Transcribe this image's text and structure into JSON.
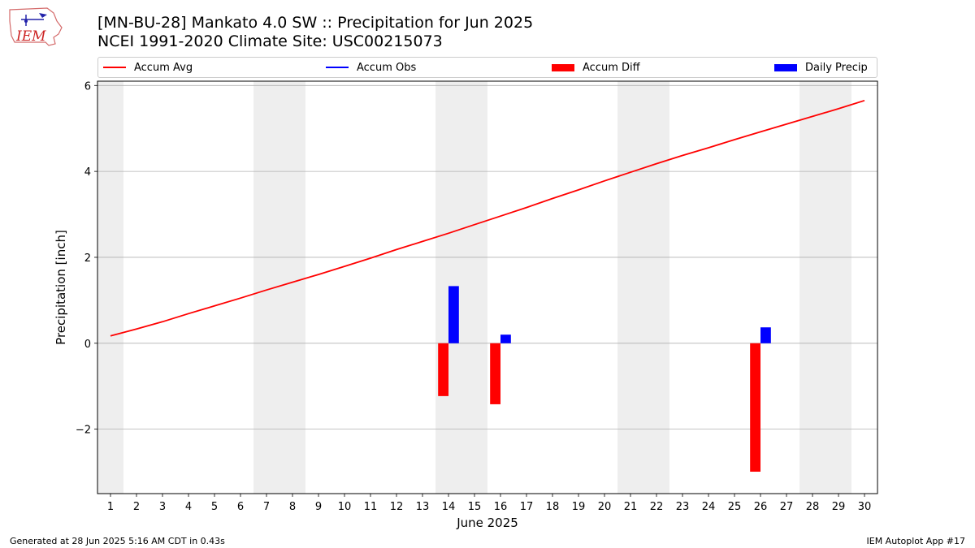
{
  "logo_text": "IEM",
  "title_line1": "[MN-BU-28] Mankato 4.0 SW :: Precipitation for Jun 2025",
  "title_line2": "NCEI 1991-2020 Climate Site: USC00215073",
  "footer_left": "Generated at 28 Jun 2025 5:16 AM CDT in 0.43s",
  "footer_right": "IEM Autoplot App #17",
  "legend": [
    {
      "label": "Accum Avg",
      "type": "line",
      "color": "#ff0000"
    },
    {
      "label": "Accum Obs",
      "type": "line",
      "color": "#0000ff"
    },
    {
      "label": "Accum Diff",
      "type": "bar",
      "color": "#ff0000"
    },
    {
      "label": "Daily Precip",
      "type": "bar",
      "color": "#0000ff"
    }
  ],
  "chart_data": {
    "type": "bar",
    "xlabel": "June 2025",
    "ylabel": "Precipitation [inch]",
    "xlim": [
      0.5,
      30.5
    ],
    "ylim": [
      -3.5,
      6.1
    ],
    "yticks": [
      -2,
      0,
      2,
      4,
      6
    ],
    "ytick_labels": [
      "−2",
      "0",
      "2",
      "4",
      "6"
    ],
    "xticks": [
      1,
      2,
      3,
      4,
      5,
      6,
      7,
      8,
      9,
      10,
      11,
      12,
      13,
      14,
      15,
      16,
      17,
      18,
      19,
      20,
      21,
      22,
      23,
      24,
      25,
      26,
      27,
      28,
      29,
      30
    ],
    "grid": "horizontal",
    "weekend_shading": [
      [
        0.5,
        1.5
      ],
      [
        6.5,
        8.5
      ],
      [
        13.5,
        15.5
      ],
      [
        20.5,
        22.5
      ],
      [
        27.5,
        29.5
      ]
    ],
    "accum_avg": {
      "name": "Accum Avg",
      "x": [
        1,
        2,
        3,
        4,
        5,
        6,
        7,
        8,
        9,
        10,
        11,
        12,
        13,
        14,
        15,
        16,
        17,
        18,
        19,
        20,
        21,
        22,
        23,
        24,
        25,
        26,
        27,
        28,
        29,
        30
      ],
      "values": [
        0.17,
        0.33,
        0.5,
        0.69,
        0.87,
        1.05,
        1.24,
        1.42,
        1.6,
        1.79,
        1.98,
        2.18,
        2.37,
        2.56,
        2.76,
        2.96,
        3.16,
        3.37,
        3.57,
        3.78,
        3.98,
        4.18,
        4.37,
        4.55,
        4.74,
        4.92,
        5.1,
        5.28,
        5.46,
        5.65
      ]
    },
    "accum_diff": {
      "name": "Accum Diff",
      "x": [
        14,
        16,
        26
      ],
      "values": [
        -1.23,
        -1.42,
        -2.99
      ]
    },
    "daily_precip": {
      "name": "Daily Precip",
      "x": [
        14,
        16,
        26
      ],
      "values": [
        1.33,
        0.2,
        0.37
      ]
    }
  }
}
